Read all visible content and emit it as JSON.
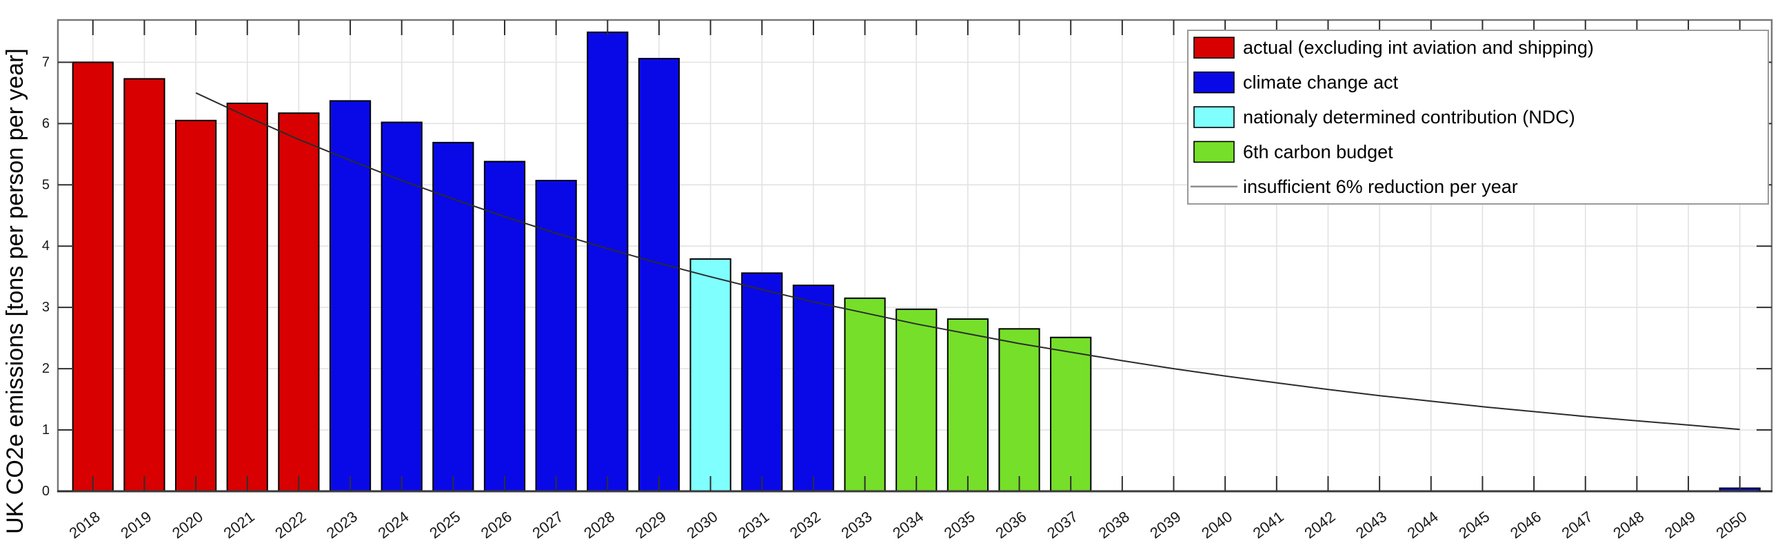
{
  "chart_data": {
    "type": "bar",
    "title": "",
    "xlabel": "",
    "ylabel": "UK CO2e emissions [tons per person per year]",
    "ylim": [
      0,
      7.69
    ],
    "xlim": [
      2017.32,
      2050.62
    ],
    "y_ticks": [
      0,
      1,
      2,
      3,
      4,
      5,
      6,
      7
    ],
    "x_ticks": [
      2018,
      2019,
      2020,
      2021,
      2022,
      2023,
      2024,
      2025,
      2026,
      2027,
      2028,
      2029,
      2030,
      2031,
      2032,
      2033,
      2034,
      2035,
      2036,
      2037,
      2038,
      2039,
      2040,
      2041,
      2042,
      2043,
      2044,
      2045,
      2046,
      2047,
      2048,
      2049,
      2050
    ],
    "grid": true,
    "legend_position": "upper-right",
    "series": [
      {
        "name": "actual (excluding int aviation and shipping)",
        "type": "bar",
        "color": "#D80000",
        "points": [
          [
            2018,
            7.0
          ],
          [
            2019,
            6.73
          ],
          [
            2020,
            6.05
          ],
          [
            2021,
            6.33
          ],
          [
            2022,
            6.17
          ]
        ]
      },
      {
        "name": "climate change act",
        "type": "bar",
        "color": "#0909E8",
        "points": [
          [
            2023,
            6.37
          ],
          [
            2024,
            6.02
          ],
          [
            2025,
            5.69
          ],
          [
            2026,
            5.38
          ],
          [
            2027,
            5.07
          ],
          [
            2028,
            7.49
          ],
          [
            2029,
            7.06
          ],
          [
            2031,
            3.56
          ],
          [
            2032,
            3.36
          ],
          [
            2050,
            0.05
          ]
        ]
      },
      {
        "name": "nationaly determined contribution (NDC)",
        "type": "bar",
        "color": "#80FFFF",
        "points": [
          [
            2030,
            3.79
          ]
        ]
      },
      {
        "name": "6th carbon budget",
        "type": "bar",
        "color": "#76DF29",
        "points": [
          [
            2033,
            3.15
          ],
          [
            2034,
            2.97
          ],
          [
            2035,
            2.81
          ],
          [
            2036,
            2.65
          ],
          [
            2037,
            2.51
          ]
        ]
      },
      {
        "name": "insufficient 6% reduction per year",
        "type": "line",
        "color": "#2B2B2B",
        "legend_line_color": "#8C8C8C",
        "model": {
          "start_year": 2020,
          "start_value": 6.5,
          "annual_reduction_pct": 6,
          "end_year": 2050
        },
        "x": [
          2020,
          2021,
          2022,
          2023,
          2024,
          2025,
          2026,
          2027,
          2028,
          2029,
          2030,
          2031,
          2032,
          2033,
          2034,
          2035,
          2036,
          2037,
          2038,
          2039,
          2040,
          2041,
          2042,
          2043,
          2044,
          2045,
          2046,
          2047,
          2048,
          2049,
          2050
        ],
        "values": [
          6.5,
          6.11,
          5.74,
          5.4,
          5.07,
          4.77,
          4.48,
          4.21,
          3.96,
          3.72,
          3.5,
          3.29,
          3.09,
          2.91,
          2.73,
          2.57,
          2.41,
          2.27,
          2.13,
          2.0,
          1.88,
          1.77,
          1.66,
          1.56,
          1.47,
          1.38,
          1.3,
          1.22,
          1.15,
          1.08,
          1.01
        ]
      }
    ],
    "colors": {
      "grid": "#E2E2E2",
      "box_border": "#787878",
      "baseline": "#3A3A3A",
      "tick": "#2F2F2F",
      "bar_edge": "#000000",
      "legend_border": "#999999",
      "legend_background": "#FFFFFF"
    }
  }
}
